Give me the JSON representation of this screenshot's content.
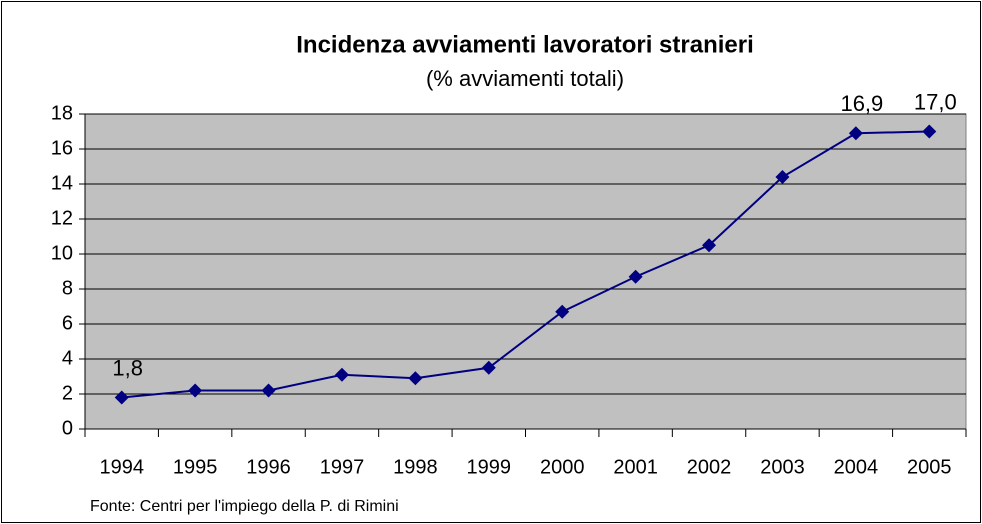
{
  "chart_data": {
    "type": "line",
    "title": "Incidenza avviamenti lavoratori stranieri",
    "subtitle": "(% avviamenti totali)",
    "source": "Fonte: Centri per l'impiego della P. di Rimini",
    "categories": [
      "1994",
      "1995",
      "1996",
      "1997",
      "1998",
      "1999",
      "2000",
      "2001",
      "2002",
      "2003",
      "2004",
      "2005"
    ],
    "series": [
      {
        "color": "#000080",
        "values": [
          1.8,
          2.2,
          2.2,
          3.1,
          2.9,
          3.5,
          6.7,
          8.7,
          10.5,
          14.4,
          16.9,
          17.0
        ],
        "value_labels": [
          "1,8",
          null,
          null,
          null,
          null,
          null,
          null,
          null,
          null,
          null,
          "16,9",
          "17,0"
        ]
      }
    ],
    "ylim": [
      0,
      18
    ],
    "yticks": [
      0,
      2,
      4,
      6,
      8,
      10,
      12,
      14,
      16,
      18
    ],
    "grid": true,
    "plot_color": "#c0c0c0"
  }
}
